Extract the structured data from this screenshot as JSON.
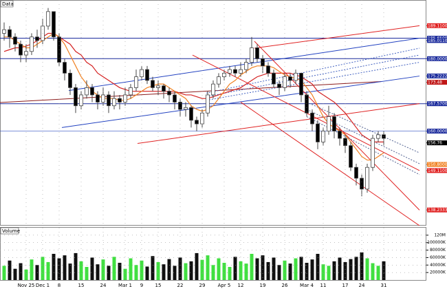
{
  "chart_data": {
    "type": "candlestick",
    "title": "Data",
    "categories": [
      null,
      null,
      null,
      null,
      "Nov 25",
      null,
      null,
      "Dec 1",
      null,
      null,
      "8",
      null,
      null,
      null,
      "15",
      null,
      null,
      null,
      "24",
      null,
      null,
      null,
      "Mar 1",
      null,
      null,
      "9",
      null,
      null,
      "15",
      null,
      null,
      null,
      "22",
      null,
      null,
      null,
      "29",
      null,
      null,
      null,
      "Apr 5",
      null,
      null,
      "12",
      null,
      null,
      null,
      "19",
      null,
      null,
      null,
      "26",
      null,
      null,
      null,
      "Mar 4",
      null,
      null,
      "11",
      null,
      null,
      null,
      "17",
      null,
      null,
      "24",
      null,
      null,
      null,
      "31"
    ],
    "open": [
      187,
      188,
      186,
      184,
      181,
      182,
      186,
      185,
      189,
      193,
      186,
      179,
      176,
      172,
      167,
      170,
      172,
      170,
      168,
      170,
      167,
      169,
      168,
      170,
      172,
      175,
      177,
      174,
      172,
      172.5,
      171,
      170,
      168,
      166,
      166.5,
      163,
      162,
      165,
      170,
      173,
      175,
      176,
      177,
      176,
      177,
      179,
      183,
      180,
      178,
      176,
      173,
      172,
      175,
      174,
      176,
      170,
      165,
      162,
      157,
      160,
      164,
      160,
      158,
      156,
      150,
      147,
      144,
      150,
      158,
      159
    ],
    "high": [
      190,
      189,
      187,
      185,
      184,
      187,
      188,
      191,
      194,
      193,
      187,
      180,
      177,
      173,
      171,
      174,
      173,
      171,
      172,
      171,
      171,
      170,
      172,
      173,
      177,
      178,
      178,
      175,
      174,
      173,
      172,
      171,
      169,
      168,
      167,
      164,
      166,
      171,
      174,
      176,
      177,
      178,
      178,
      179,
      180,
      186,
      184,
      181,
      179,
      177,
      174,
      176,
      176,
      177,
      176,
      171,
      166,
      163,
      161,
      167,
      165,
      161,
      159,
      157,
      151,
      148,
      151,
      159,
      160,
      160
    ],
    "low": [
      185,
      183,
      182,
      179,
      179,
      181,
      183,
      184,
      188,
      185,
      178,
      174,
      170,
      165,
      166,
      169,
      168,
      166,
      167,
      165,
      166,
      166,
      167,
      169,
      171,
      174,
      173,
      171,
      170,
      169,
      168,
      166,
      164,
      164,
      161,
      160,
      161,
      164,
      169,
      172,
      174,
      175,
      175,
      175,
      176,
      178,
      179,
      176,
      175,
      172,
      170,
      171,
      172,
      173,
      168,
      164,
      160,
      155,
      156,
      159,
      158,
      156,
      154,
      149,
      145,
      142,
      143,
      149,
      157,
      156
    ],
    "close": [
      188,
      186,
      184,
      181,
      182,
      186,
      185,
      189,
      193,
      186,
      179,
      176,
      172,
      167,
      170,
      172,
      170,
      168,
      170,
      167,
      169,
      168,
      170,
      172,
      175,
      177,
      174,
      172,
      172.5,
      171,
      170,
      168,
      166,
      166.5,
      163,
      162,
      165,
      170,
      173,
      175,
      176,
      177,
      176,
      177,
      179,
      183,
      180,
      178,
      176,
      173,
      172,
      175,
      174,
      176,
      170,
      165,
      162,
      157,
      160,
      164,
      160,
      158,
      156,
      150,
      147,
      144,
      150,
      158,
      159,
      158
    ],
    "up_color": "#ffffff",
    "down_color": "#000000",
    "series": [
      {
        "color": "#d42020",
        "values": [
          182,
          182.5,
          183,
          183,
          183.5,
          184,
          185,
          186,
          187,
          187,
          186,
          185,
          184,
          182,
          181,
          179,
          178,
          176,
          175,
          174,
          173,
          172,
          171.5,
          171,
          171,
          171,
          171,
          171,
          171,
          171,
          171,
          171,
          170.5,
          170,
          170,
          169.5,
          169,
          169,
          169.5,
          170,
          170.5,
          171,
          171.5,
          172,
          173,
          174,
          175,
          175.5,
          176,
          176,
          176,
          176,
          176,
          175.5,
          175,
          174,
          173,
          171,
          170,
          169,
          168,
          166.5,
          165,
          163,
          161,
          159,
          158,
          157,
          157,
          157
        ]
      },
      {
        "color": "#f08020",
        "values": [
          186,
          186,
          185,
          184,
          183,
          183,
          184,
          185,
          186,
          187,
          186,
          184,
          181,
          178,
          175,
          173,
          171,
          170,
          169,
          169,
          169,
          168.5,
          168.5,
          169,
          170,
          171,
          172,
          172.5,
          173,
          173,
          172,
          171,
          170,
          169,
          167,
          166,
          165.5,
          166,
          167,
          169,
          171,
          173,
          174,
          175.5,
          176.5,
          177.5,
          178,
          178,
          178,
          177.5,
          176.5,
          175.5,
          175,
          174.5,
          174,
          172,
          170,
          167,
          164,
          162,
          161,
          160,
          159,
          157,
          155,
          153,
          152,
          152,
          153,
          154
        ]
      }
    ],
    "hlines": [
      {
        "value": 185.65,
        "color": "#1a2a9c"
      },
      {
        "value": 180.0,
        "color": "#1a2a9c"
      },
      {
        "value": 167.57,
        "color": "#1a2a9c"
      },
      {
        "value": 160.0,
        "color": "#3050c0"
      }
    ],
    "trend_lines": [
      {
        "x": [
          -0.75,
          68.6
        ],
        "y": [
          167.9,
          173.7
        ],
        "color": "#8b1a1a",
        "dash": false
      },
      {
        "x": [
          11.75,
          75.5
        ],
        "y": [
          171.2,
          185.65
        ],
        "color": "#2040c0",
        "dash": false
      },
      {
        "x": [
          10.5,
          75.5
        ],
        "y": [
          161.0,
          175.2
        ],
        "color": "#2040c0",
        "dash": false
      },
      {
        "x": [
          36.75,
          75.5
        ],
        "y": [
          170.5,
          182.9
        ],
        "color": "#4060c0",
        "dash": true
      },
      {
        "x": [
          36.75,
          75.5
        ],
        "y": [
          169.5,
          181.0
        ],
        "color": "#4060c0",
        "dash": true
      },
      {
        "x": [
          36.75,
          75.5
        ],
        "y": [
          168.5,
          179.0
        ],
        "color": "#4060c0",
        "dash": true
      },
      {
        "x": [
          45.5,
          75.5
        ],
        "y": [
          182.9,
          189.11
        ],
        "color": "#e02020",
        "dash": false
      },
      {
        "x": [
          24.25,
          75.5
        ],
        "y": [
          156.6,
          167.6
        ],
        "color": "#e02020",
        "dash": false
      },
      {
        "x": [
          34.25,
          75.5
        ],
        "y": [
          181.0,
          149.11
        ],
        "color": "#e02020",
        "dash": false
      },
      {
        "x": [
          45.5,
          75.5
        ],
        "y": [
          184.8,
          138.2
        ],
        "color": "#e02020",
        "dash": false
      },
      {
        "x": [
          43,
          75.5
        ],
        "y": [
          168.0,
          133.9
        ],
        "color": "#e02020",
        "dash": false
      },
      {
        "x": [
          55,
          75.5
        ],
        "y": [
          168.0,
          154.0
        ],
        "color": "#506090",
        "dash": true
      },
      {
        "x": [
          55,
          75.5
        ],
        "y": [
          166.0,
          151.0
        ],
        "color": "#506090",
        "dash": true
      },
      {
        "x": [
          55,
          75.5
        ],
        "y": [
          164.0,
          148.0
        ],
        "color": "#506090",
        "dash": true
      }
    ],
    "xlim": [
      -0.75,
      76.75
    ],
    "ylim": [
      133.9,
      196.2
    ],
    "yticks": [
      {
        "value": 189.11,
        "label": "189.1100"
      },
      {
        "value": 185.65,
        "label": "185.6500"
      },
      {
        "value": 185.011,
        "label": "185.0110"
      },
      {
        "value": 180.0,
        "label": "180.0000"
      },
      {
        "value": 175.2222,
        "label": "175.2222"
      },
      {
        "value": 173.48,
        "label": "173.48"
      },
      {
        "value": 167.57,
        "label": "167.5700"
      },
      {
        "value": 160.0,
        "label": "160.0000"
      },
      {
        "value": 156.76,
        "label": "156.76"
      },
      {
        "value": 150.8,
        "label": "150.8000"
      },
      {
        "value": 149.11,
        "label": "149.1100"
      },
      {
        "value": 138.2333,
        "label": "138.2333"
      }
    ],
    "ytick_colors": [
      "#e02020",
      "#1a2a9c",
      "#1a2a9c",
      "#1a2a9c",
      "#1a2a9c",
      "#c01818",
      "#1a2a9c",
      "#1a2a9c",
      "#000000",
      "#f08020",
      "#e02020",
      "#e02020"
    ],
    "grid": true,
    "volume": {
      "title": "Volume",
      "values": [
        38000000,
        52000000,
        30000000,
        45000000,
        28000000,
        55000000,
        40000000,
        62000000,
        48000000,
        70000000,
        58000000,
        66000000,
        44000000,
        72000000,
        50000000,
        35000000,
        60000000,
        42000000,
        55000000,
        38000000,
        62000000,
        46000000,
        30000000,
        58000000,
        40000000,
        52000000,
        36000000,
        64000000,
        48000000,
        42000000,
        56000000,
        38000000,
        60000000,
        45000000,
        50000000,
        72000000,
        54000000,
        66000000,
        40000000,
        58000000,
        46000000,
        35000000,
        62000000,
        50000000,
        44000000,
        70000000,
        58000000,
        66000000,
        48000000,
        60000000,
        40000000,
        52000000,
        44000000,
        58000000,
        62000000,
        46000000,
        55000000,
        70000000,
        42000000,
        38000000,
        50000000,
        60000000,
        48000000,
        56000000,
        62000000,
        74000000,
        58000000,
        45000000,
        38000000,
        50000000
      ],
      "up_color": "#40e040",
      "down_color": "#101010",
      "ylim": [
        0,
        140000000
      ],
      "yticks": [
        {
          "value": 120000000,
          "label": "120M"
        },
        {
          "value": 100000000,
          "label": "100000K"
        },
        {
          "value": 80000000,
          "label": "80000K"
        },
        {
          "value": 60000000,
          "label": "60000K"
        },
        {
          "value": 40000000,
          "label": "40000K"
        },
        {
          "value": 20000000,
          "label": "20000K"
        }
      ]
    }
  }
}
